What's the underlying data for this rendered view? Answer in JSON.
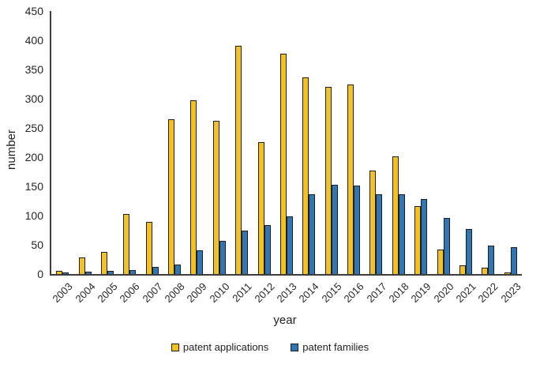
{
  "chart_data": {
    "type": "bar",
    "title": "",
    "xlabel": "year",
    "ylabel": "number",
    "ylim": [
      0,
      450
    ],
    "yticks": [
      0,
      50,
      100,
      150,
      200,
      250,
      300,
      350,
      400,
      450
    ],
    "grid": false,
    "legend_position": "bottom",
    "axis_color": "#3d3d3d",
    "bar_border_color": "#1e1e1e",
    "text_color": "#262626",
    "categories": [
      "2003",
      "2004",
      "2005",
      "2006",
      "2007",
      "2008",
      "2009",
      "2010",
      "2011",
      "2012",
      "2013",
      "2014",
      "2015",
      "2016",
      "2017",
      "2018",
      "2019",
      "2020",
      "2021",
      "2022",
      "2023"
    ],
    "series": [
      {
        "name": "patent applications",
        "color": "#F6C118",
        "values": [
          5,
          29,
          38,
          103,
          89,
          265,
          297,
          262,
          391,
          226,
          377,
          337,
          320,
          325,
          177,
          202,
          116,
          42,
          15,
          11,
          2
        ]
      },
      {
        "name": "patent families",
        "color": "#2F76B6",
        "values": [
          1,
          4,
          5,
          7,
          12,
          16,
          41,
          57,
          75,
          84,
          99,
          137,
          153,
          152,
          136,
          137,
          128,
          96,
          77,
          49,
          46
        ]
      }
    ]
  }
}
